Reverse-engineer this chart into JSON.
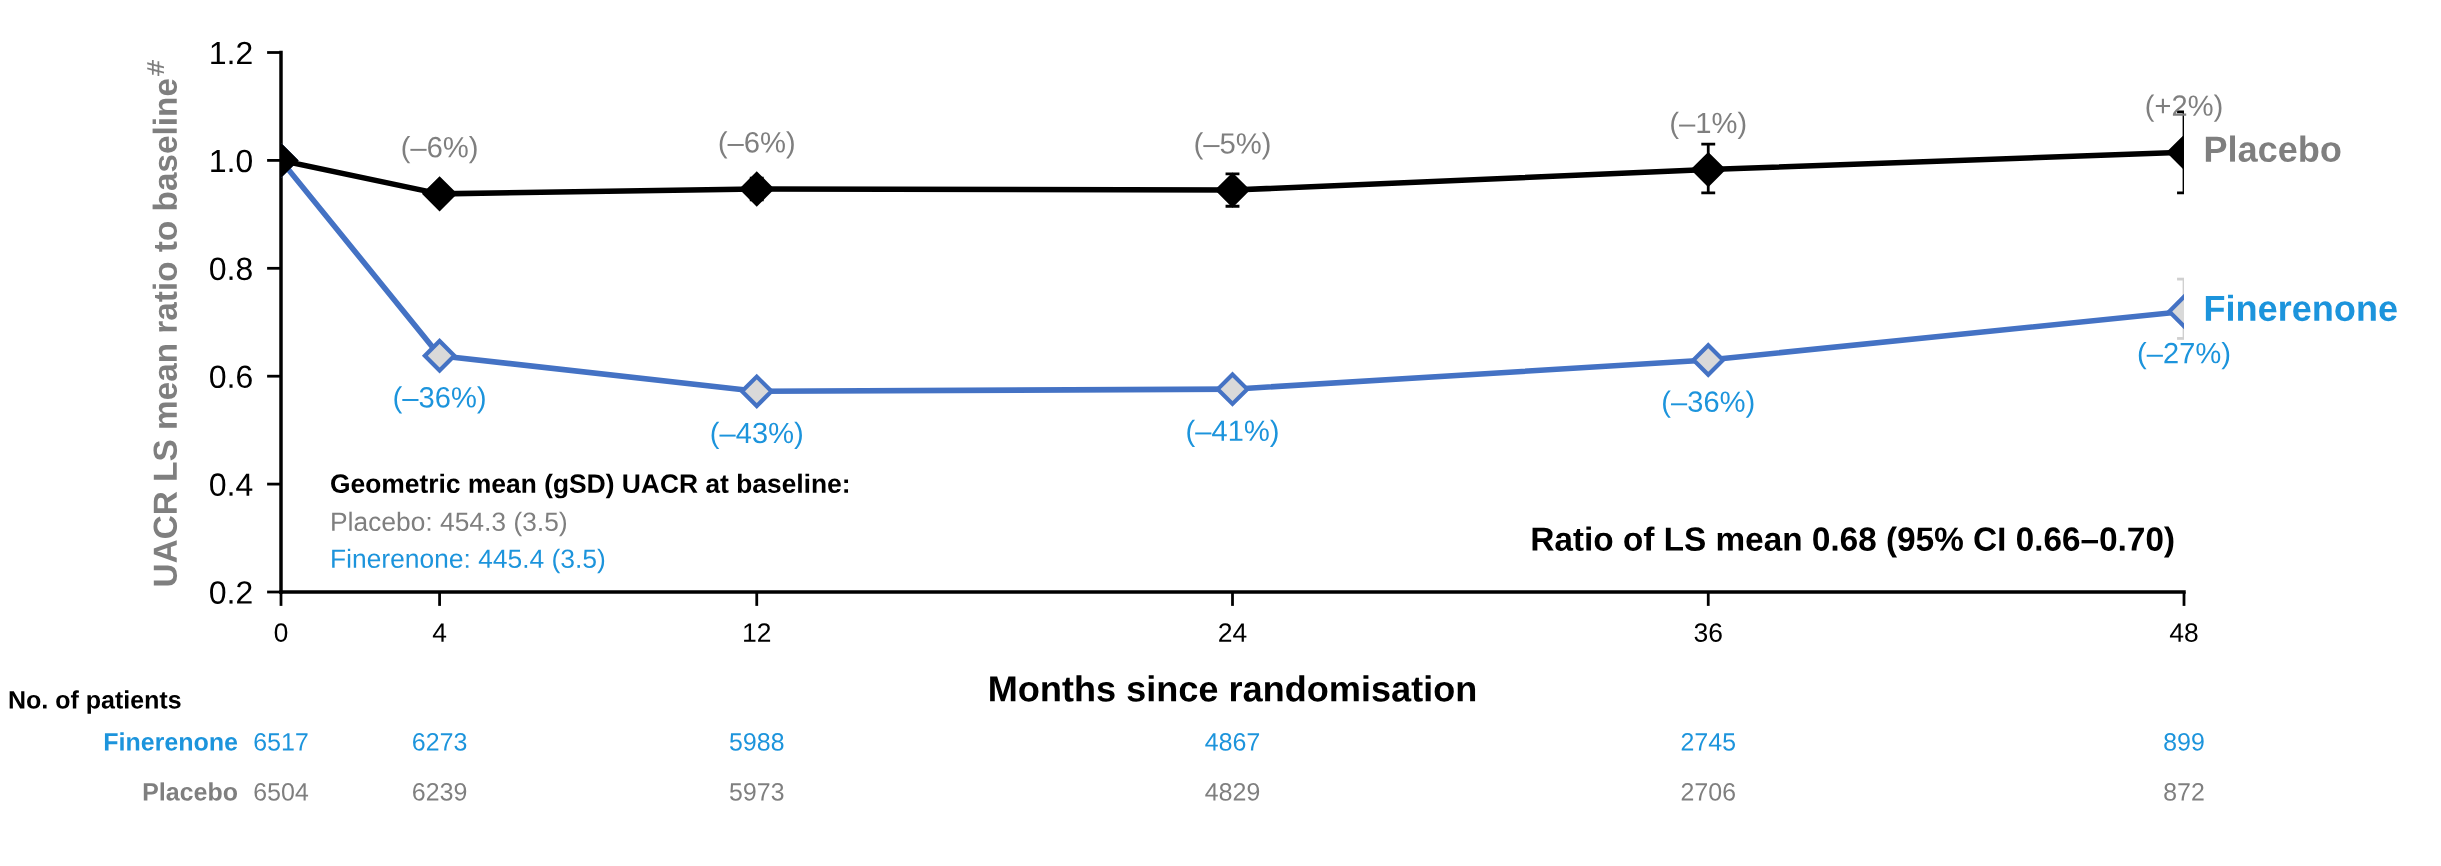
{
  "chart_data": {
    "type": "line",
    "xlabel": "Months since randomisation",
    "ylabel": "UACR LS mean ratio to baseline$^{#}$",
    "x": [
      0,
      4,
      12,
      24,
      36,
      48
    ],
    "xlim": [
      0,
      48
    ],
    "xticks": [
      0,
      4,
      12,
      24,
      36,
      48
    ],
    "ylim": [
      0.2,
      1.2
    ],
    "yticks": [
      {
        "value": 0.2,
        "label": "0.2"
      },
      {
        "value": 0.4,
        "label": "0.4"
      },
      {
        "value": 0.6,
        "label": "0.6"
      },
      {
        "value": 0.8,
        "label": "0.8"
      },
      {
        "value": 1.0,
        "label": "1.0"
      },
      {
        "value": 1.2,
        "label": "1.2"
      }
    ],
    "marker": "diamond",
    "line_style": "solid",
    "grid": false,
    "legend": false,
    "series": [
      {
        "name": "Placebo",
        "color": "#000000",
        "values": [
          1.0,
          0.938,
          0.947,
          0.945,
          0.983,
          1.015
        ],
        "errors": [
          null,
          0.015,
          0.02,
          [
            0.915,
            0.975
          ],
          [
            0.94,
            1.03
          ],
          [
            0.94,
            1.09
          ]
        ]
      },
      {
        "name": "Finerenone",
        "color": "#4472c4",
        "values": [
          1.0,
          0.638,
          0.572,
          0.576,
          0.63,
          0.72
        ],
        "errors": [
          null,
          null,
          null,
          null,
          null,
          [
            0.67,
            0.78
          ]
        ]
      }
    ],
    "annotations": [
      "Geometric mean (gSD) UACR at baseline:",
      "Placebo: 454.3 (3.5)",
      "Finerenone: 445.4 (3.5)",
      "Ratio of LS mean 0.68 (95% CI 0.66–0.70)",
      "No. of patients",
      "Finerenone",
      "6517",
      "6273",
      "5988",
      "4867",
      "2745",
      "899",
      "Placebo",
      "6504",
      "6239",
      "5973",
      "4829",
      "2706",
      "872",
      {
        "text": "(–6%)",
        "x": 4,
        "y": 0.938
      },
      {
        "text": "(–6%)",
        "x": 12,
        "y": 0.947
      },
      {
        "text": "(–5%)",
        "x": 24,
        "y": 0.945
      },
      {
        "text": "(–1%)",
        "x": 36,
        "y": 0.983
      },
      {
        "text": "(+2%)",
        "x": 48,
        "y": 1.015
      },
      {
        "text": "(–36%)",
        "x": 4,
        "y": 0.638
      },
      {
        "text": "(–43%)",
        "x": 12,
        "y": 0.572
      },
      {
        "text": "(–41%)",
        "x": 24,
        "y": 0.576
      },
      {
        "text": "(–36%)",
        "x": 36,
        "y": 0.63
      },
      {
        "text": "(–27%)",
        "x": 48,
        "y": 0.72
      }
    ]
  }
}
